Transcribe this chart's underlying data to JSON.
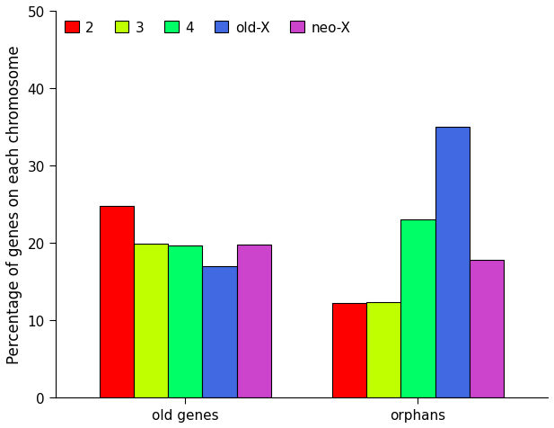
{
  "groups": [
    "old genes",
    "orphans"
  ],
  "series": [
    {
      "label": "2",
      "color": "#FF0000",
      "values": [
        24.8,
        12.2
      ]
    },
    {
      "label": "3",
      "color": "#BFFF00",
      "values": [
        19.9,
        12.3
      ]
    },
    {
      "label": "4",
      "color": "#00FF66",
      "values": [
        19.7,
        23.0
      ]
    },
    {
      "label": "old-X",
      "color": "#4169E1",
      "values": [
        17.0,
        35.0
      ]
    },
    {
      "label": "neo-X",
      "color": "#CC44CC",
      "values": [
        19.8,
        17.8
      ]
    }
  ],
  "ylabel": "Percentage of genes on each chromosome",
  "ylim": [
    0,
    50
  ],
  "yticks": [
    0,
    10,
    20,
    30,
    40,
    50
  ],
  "bar_width": 0.14,
  "group_centers": [
    0.4,
    1.35
  ],
  "background_color": "#FFFFFF",
  "legend_fontsize": 11,
  "axis_fontsize": 12,
  "tick_fontsize": 11,
  "bar_edge_color": "#000000",
  "bar_linewidth": 0.8
}
